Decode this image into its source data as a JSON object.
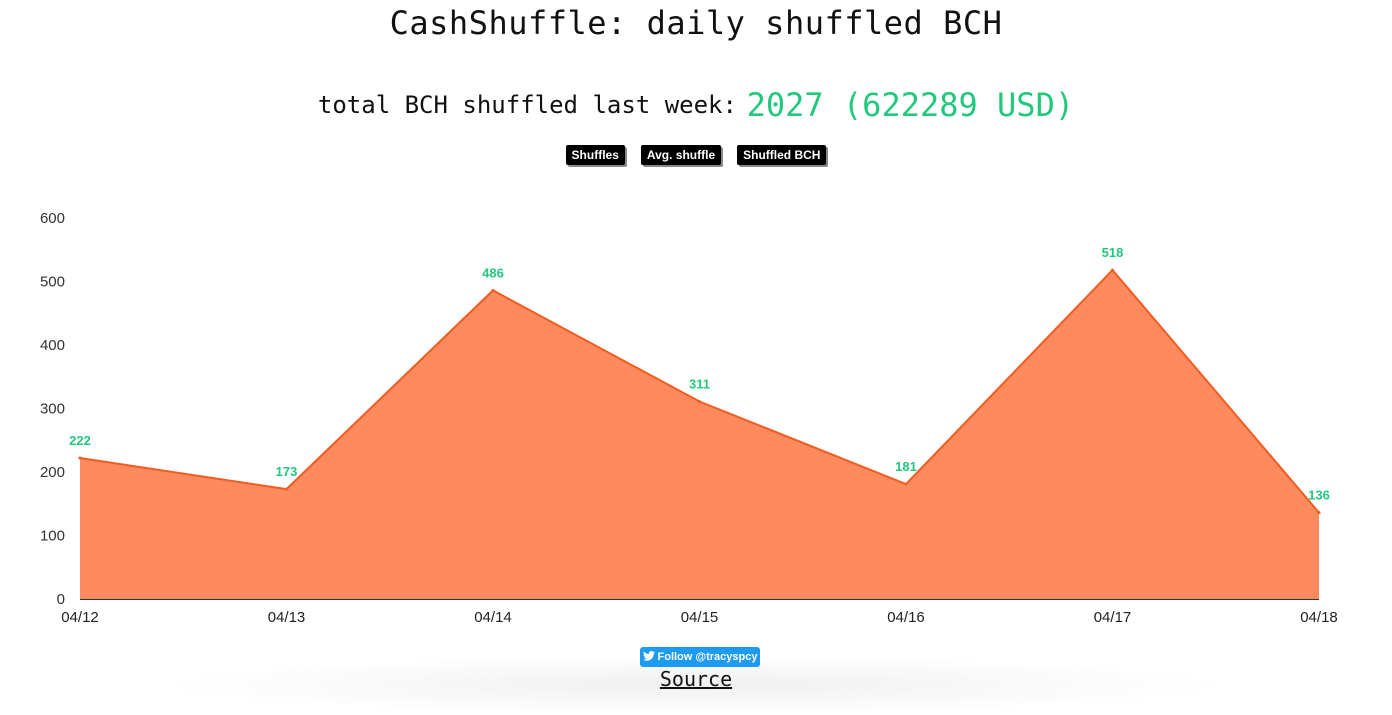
{
  "page": {
    "title": "CashShuffle: daily shuffled BCH",
    "summary_label": "total BCH shuffled last week:",
    "summary_value": "2027 (622289 USD)"
  },
  "toggles": [
    {
      "label": "Shuffles"
    },
    {
      "label": "Avg. shuffle"
    },
    {
      "label": "Shuffled BCH"
    }
  ],
  "footer": {
    "follow_label": "Follow @tracyspcy",
    "source_label": "Source"
  },
  "colors": {
    "area_fill": "#ff8a5e",
    "area_stroke": "#f25c1f",
    "data_label": "#22c97c",
    "accent": "#22c97c",
    "twitter": "#1d9bf0"
  },
  "chart_data": {
    "type": "area",
    "categories": [
      "04/12",
      "04/13",
      "04/14",
      "04/15",
      "04/16",
      "04/17",
      "04/18"
    ],
    "values": [
      222,
      173,
      486,
      311,
      181,
      518,
      136
    ],
    "ylim": [
      0,
      600
    ],
    "yticks": [
      0,
      100,
      200,
      300,
      400,
      500,
      600
    ],
    "data_labels": [
      "222",
      "173",
      "486",
      "311",
      "181",
      "518",
      "136"
    ],
    "grid": false,
    "legend": "none"
  }
}
